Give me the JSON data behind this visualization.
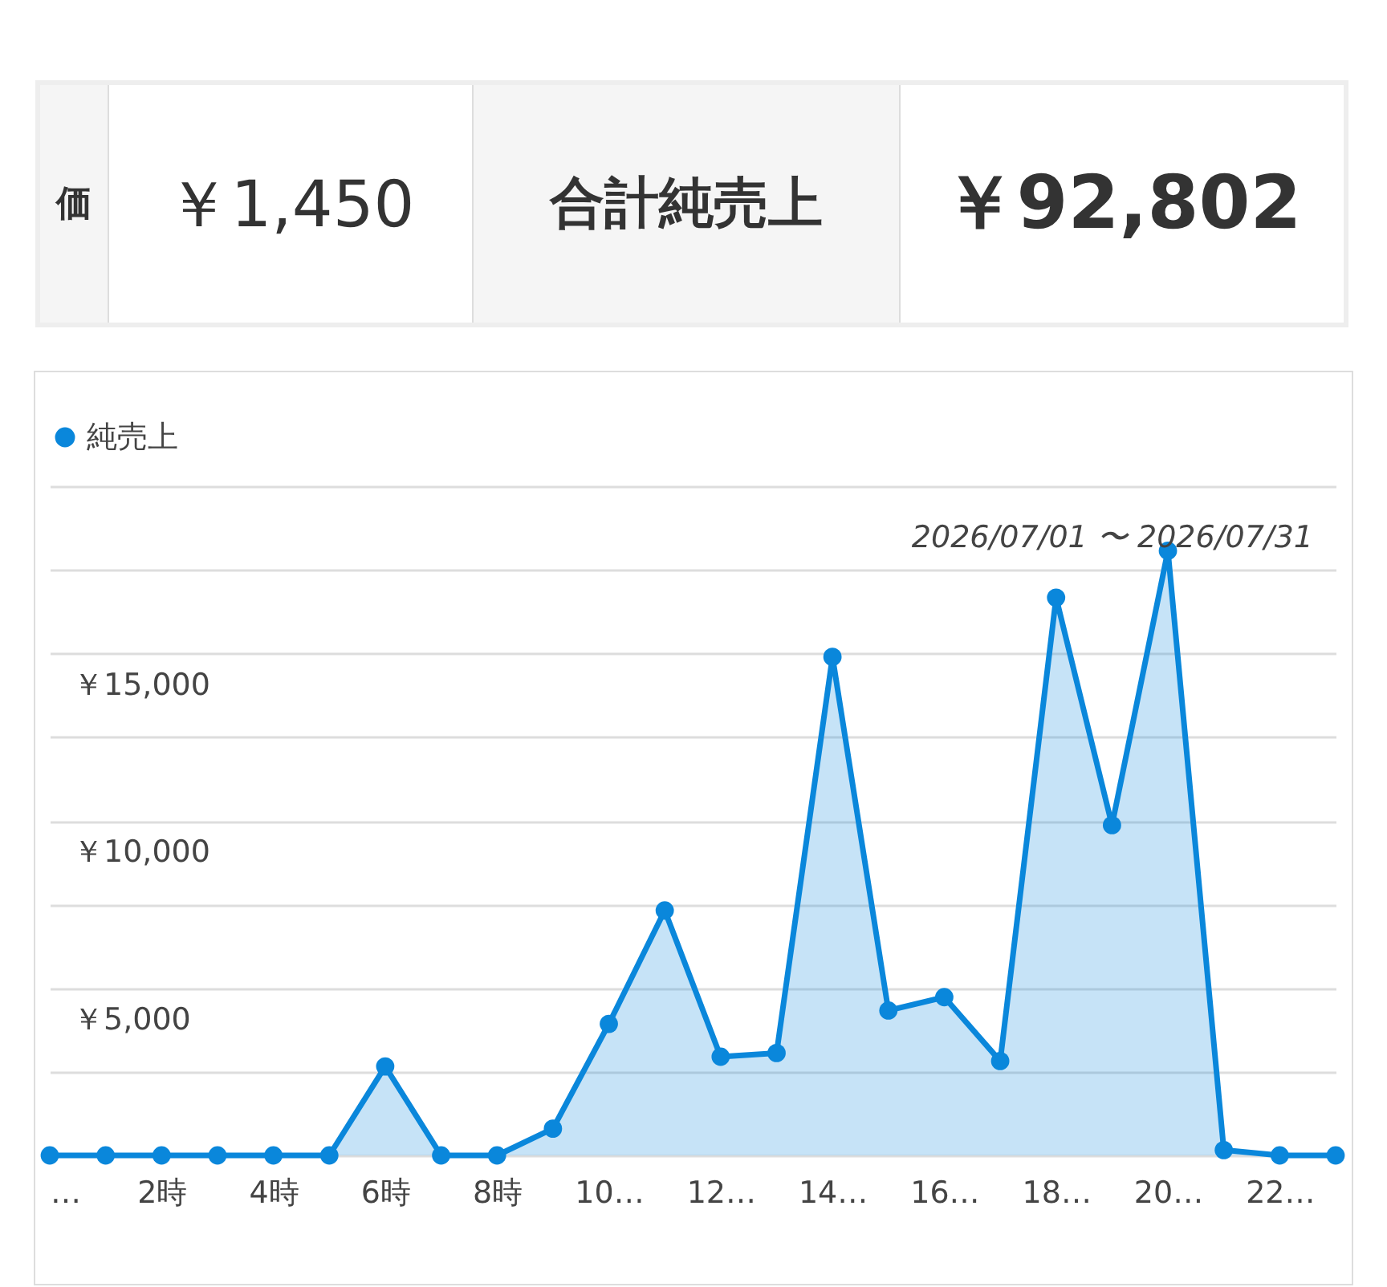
{
  "chart_data": [
    {
      "type": "other",
      "annotations": [
        "価",
        "￥1,450",
        "合計純売上",
        "￥92,802"
      ]
    },
    {
      "type": "area",
      "x": [
        0,
        1,
        2,
        3,
        4,
        5,
        6,
        7,
        8,
        9,
        10,
        11,
        12,
        13,
        14,
        15,
        16,
        17,
        18,
        19,
        20,
        21,
        22,
        23
      ],
      "series": [
        {
          "name": "純売上",
          "color": "#0a87db",
          "values": [
            0,
            0,
            0,
            0,
            0,
            0,
            2660,
            0,
            0,
            800,
            3930,
            7320,
            2950,
            3060,
            14900,
            4330,
            4730,
            2820,
            16670,
            9870,
            18070,
            160,
            0,
            0
          ]
        }
      ],
      "xlim": [
        0,
        23
      ],
      "xticks": [
        {
          "value": 0,
          "label": "…"
        },
        {
          "value": 2,
          "label": "2時"
        },
        {
          "value": 4,
          "label": "4時"
        },
        {
          "value": 6,
          "label": "6時"
        },
        {
          "value": 8,
          "label": "8時"
        },
        {
          "value": 10,
          "label": "10…"
        },
        {
          "value": 12,
          "label": "12…"
        },
        {
          "value": 14,
          "label": "14…"
        },
        {
          "value": 16,
          "label": "16…"
        },
        {
          "value": 18,
          "label": "18…"
        },
        {
          "value": 20,
          "label": "20…"
        },
        {
          "value": 22,
          "label": "22…"
        }
      ],
      "ylim": [
        0,
        20000
      ],
      "yticks": [
        {
          "value": 0,
          "label": null
        },
        {
          "value": 2500,
          "label": null
        },
        {
          "value": 5000,
          "label": "￥5,000"
        },
        {
          "value": 7500,
          "label": null
        },
        {
          "value": 10000,
          "label": "￥10,000"
        },
        {
          "value": 12500,
          "label": null
        },
        {
          "value": 15000,
          "label": "￥15,000"
        },
        {
          "value": 17500,
          "label": null
        },
        {
          "value": 20000,
          "label": null
        }
      ],
      "grid": "y",
      "legend": "top left",
      "marker": "circle",
      "line_style": "solid",
      "annotations": [
        "2026/07/01 〜 2026/07/31"
      ]
    }
  ]
}
